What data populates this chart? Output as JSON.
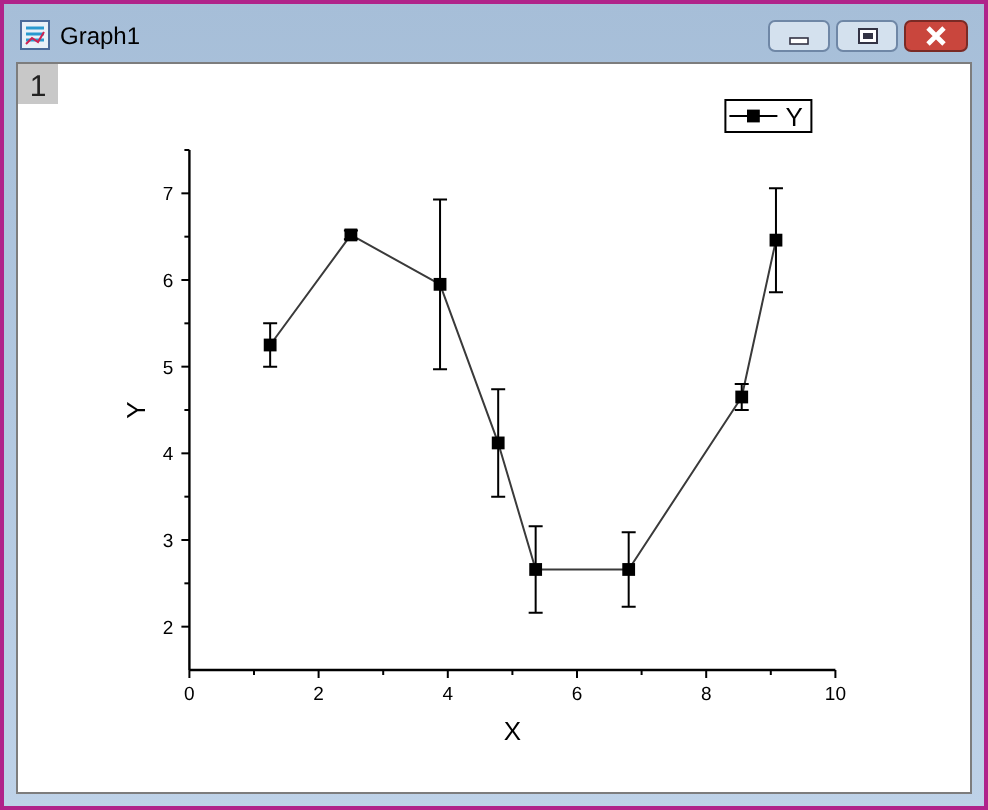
{
  "chart_data": {
    "type": "line",
    "title": "Graph1",
    "annotations": [
      "1"
    ],
    "xlabel": "X",
    "ylabel": "Y",
    "x": [
      1.25,
      2.5,
      3.88,
      4.78,
      5.36,
      6.8,
      8.55,
      9.08
    ],
    "series": [
      {
        "name": "Y",
        "color": "#000000",
        "values": [
          5.25,
          6.52,
          5.95,
          4.12,
          2.66,
          2.66,
          4.65,
          6.46
        ],
        "errors": [
          0.25,
          0.05,
          0.98,
          0.62,
          0.5,
          0.43,
          0.15,
          0.6
        ]
      }
    ],
    "xlim": [
      0,
      10
    ],
    "ylim": [
      1.5,
      7.5
    ],
    "xticks": [
      0,
      {
        "value": 1,
        "label": null
      },
      2,
      {
        "value": 3,
        "label": null
      },
      4,
      {
        "value": 5,
        "label": null
      },
      6,
      {
        "value": 7,
        "label": null
      },
      8,
      {
        "value": 9,
        "label": null
      },
      10
    ],
    "yticks": [
      2,
      {
        "value": 2.5,
        "label": null
      },
      3,
      {
        "value": 3.5,
        "label": null
      },
      4,
      {
        "value": 4.5,
        "label": null
      },
      5,
      {
        "value": 5.5,
        "label": null
      },
      6,
      {
        "value": 6.5,
        "label": null
      },
      7,
      {
        "value": 7.5,
        "label": null
      }
    ],
    "marker": "square",
    "line_style": "solid",
    "legend": "top right"
  }
}
